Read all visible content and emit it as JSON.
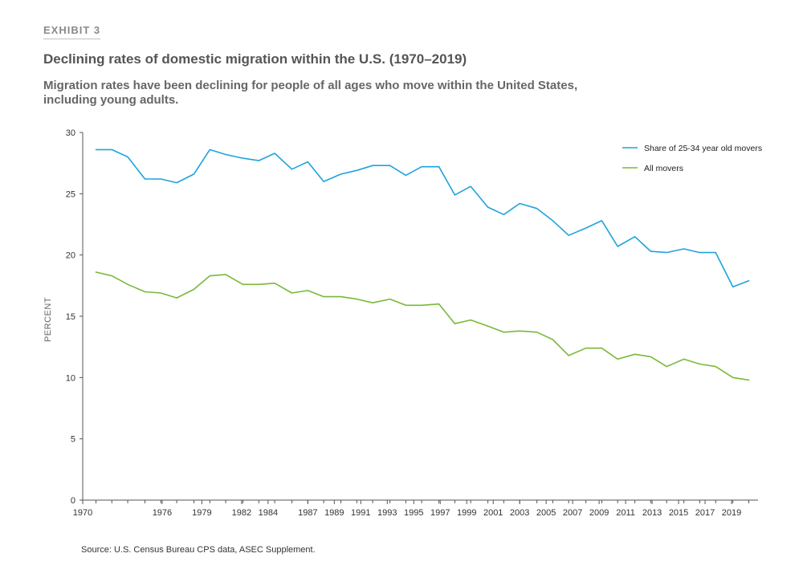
{
  "header": {
    "exhibit": "EXHIBIT 3",
    "title": "Declining rates of domestic migration within the U.S. (1970–2019)",
    "subtitle": "Migration rates have been declining for people of all ages who move within the United States, including young adults."
  },
  "source": "Source: U.S. Census Bureau CPS data, ASEC Supplement.",
  "colors": {
    "young": "#1ea3dc",
    "all": "#7ab93a",
    "axis": "#555555"
  },
  "chart_data": {
    "type": "line",
    "title": "Declining rates of domestic migration within the U.S. (1970–2019)",
    "xlabel": "",
    "ylabel": "PERCENT",
    "xlim": [
      1970,
      2021
    ],
    "ylim": [
      0,
      30
    ],
    "x_ticks": [
      1970,
      1976,
      1979,
      1982,
      1984,
      1987,
      1989,
      1991,
      1993,
      1995,
      1997,
      1999,
      2001,
      2003,
      2005,
      2007,
      2009,
      2011,
      2013,
      2015,
      2017,
      2019
    ],
    "x_tick_labels": [
      "1970",
      "1976",
      "1979",
      "1982",
      "1984",
      "1987",
      "1989",
      "1991",
      "1993",
      "1995",
      "1997",
      "1999",
      "2001",
      "2003",
      "2005",
      "2007",
      "2009",
      "2011",
      "2013",
      "2015",
      "2017",
      "2019"
    ],
    "y_ticks": [
      0,
      5,
      10,
      15,
      20,
      25,
      30
    ],
    "legend_position": "top-right",
    "x": [
      1971,
      1972.2,
      1973.4,
      1974.7,
      1975.9,
      1977.1,
      1978.4,
      1979.6,
      1980.8,
      1982.1,
      1983.3,
      1984.5,
      1985.8,
      1987,
      1988.2,
      1989.5,
      1990.7,
      1991.9,
      1993.2,
      1994.4,
      1995.6,
      1996.9,
      1998.1,
      1999.3,
      2000.6,
      2001.8,
      2003,
      2004.3,
      2005.5,
      2006.7,
      2008,
      2009.2,
      2010.4,
      2011.7,
      2012.9,
      2014.1,
      2015.4,
      2016.6,
      2017.8,
      2019.1,
      2020.3
    ],
    "series": [
      {
        "name": "Share of 25-34 year old movers",
        "values": [
          28.6,
          28.6,
          28.0,
          26.2,
          26.2,
          25.9,
          26.6,
          28.6,
          28.2,
          27.9,
          27.7,
          28.3,
          27.0,
          27.6,
          26.0,
          26.6,
          26.9,
          27.3,
          27.3,
          26.5,
          27.2,
          27.2,
          24.9,
          25.6,
          23.9,
          23.3,
          24.2,
          23.8,
          22.8,
          21.6,
          22.2,
          22.8,
          20.7,
          21.5,
          20.3,
          20.2,
          20.5,
          20.2,
          20.2,
          17.4,
          17.9
        ]
      },
      {
        "name": "All movers",
        "values": [
          18.6,
          18.3,
          17.6,
          17.0,
          16.9,
          16.5,
          17.2,
          18.3,
          18.4,
          17.6,
          17.6,
          17.7,
          16.9,
          17.1,
          16.6,
          16.6,
          16.4,
          16.1,
          16.4,
          15.9,
          15.9,
          16.0,
          14.4,
          14.7,
          14.2,
          13.7,
          13.8,
          13.7,
          13.1,
          11.8,
          12.4,
          12.4,
          11.5,
          11.9,
          11.7,
          10.9,
          11.5,
          11.1,
          10.9,
          10.0,
          9.8
        ]
      }
    ]
  }
}
